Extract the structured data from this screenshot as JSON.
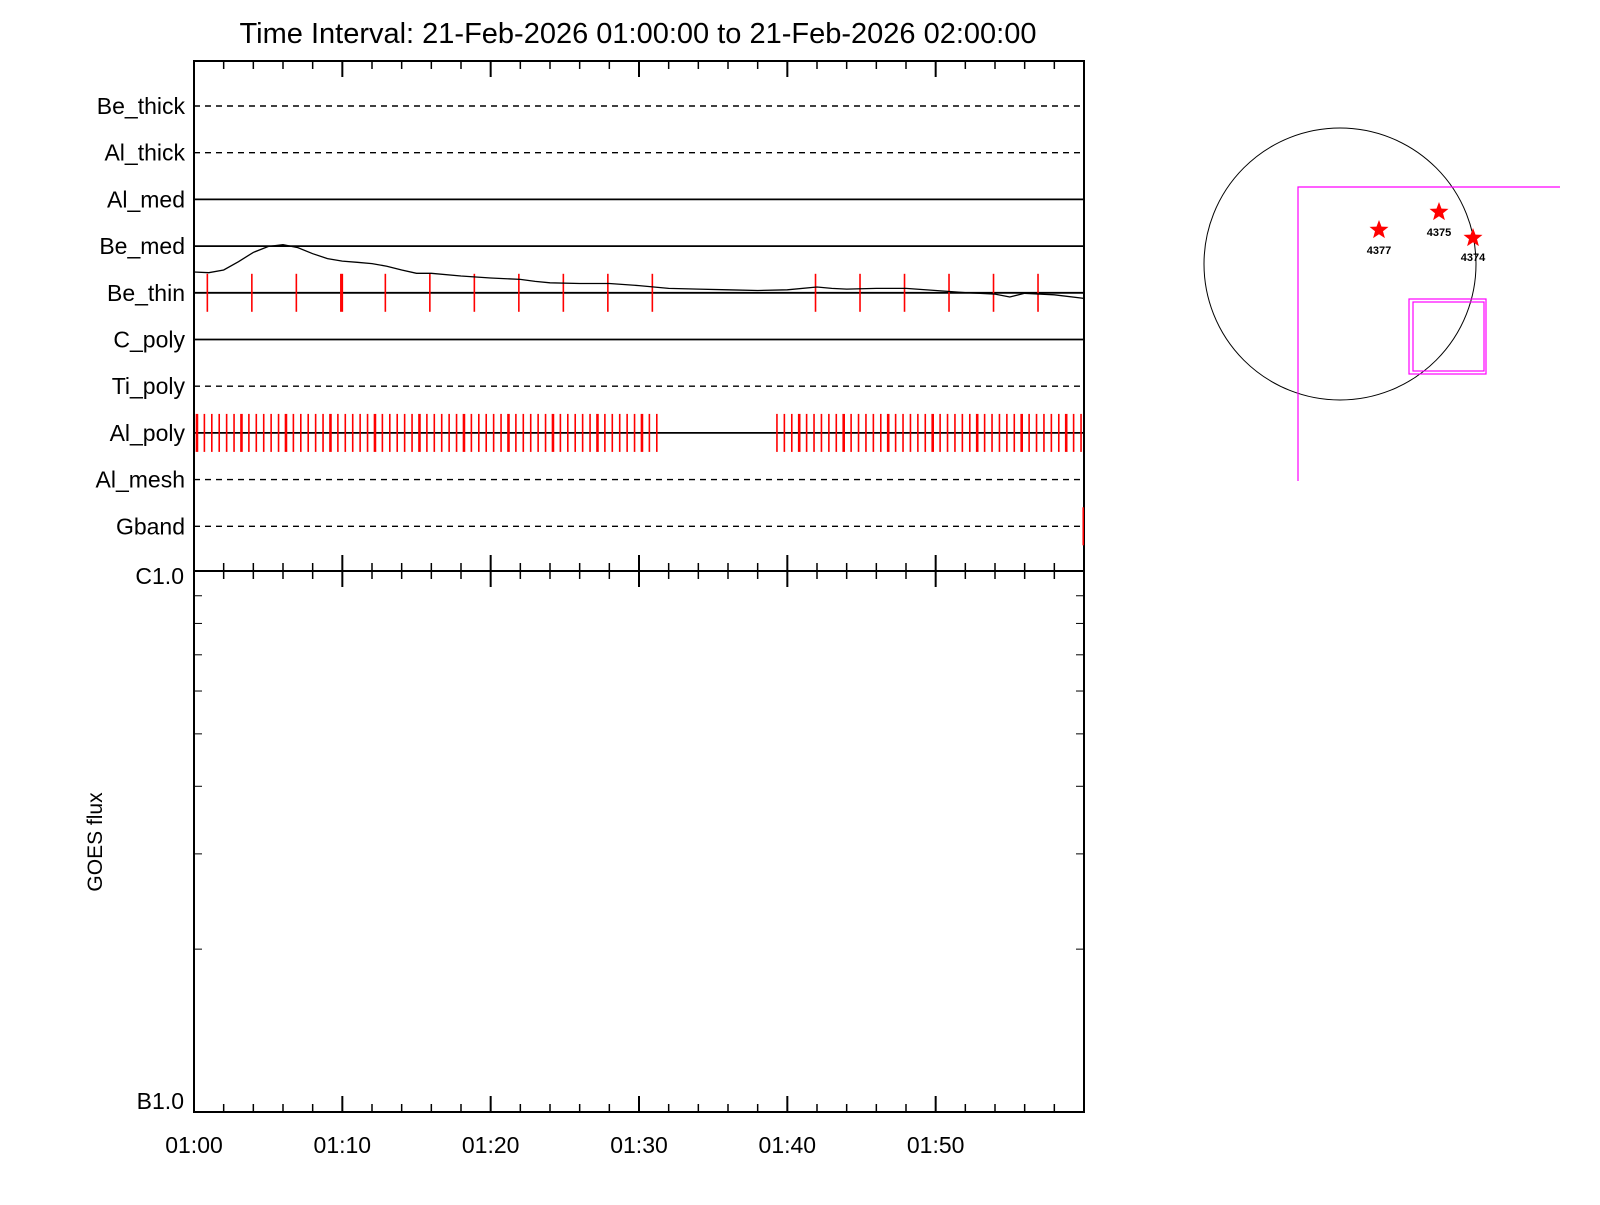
{
  "title": "Time Interval: 21-Feb-2026 01:00:00 to 21-Feb-2026 02:00:00",
  "colors": {
    "axes": "#000000",
    "event": "#ff0000",
    "fov": "#ff00ff",
    "disk": "#000000"
  },
  "chart_data": [
    {
      "type": "line",
      "title": "Time Interval: 21-Feb-2026 01:00:00 to 21-Feb-2026 02:00:00",
      "xlabel": "",
      "ylabel": "",
      "xlim_minutes": [
        0,
        60
      ],
      "xtick_labels": [
        "01:00",
        "01:10",
        "01:20",
        "01:30",
        "01:40",
        "01:50"
      ],
      "xtick_minutes": [
        0,
        10,
        20,
        30,
        40,
        50
      ],
      "filters": [
        {
          "name": "Be_thick",
          "style": "dashed",
          "events": []
        },
        {
          "name": "Al_thick",
          "style": "dashed",
          "events": []
        },
        {
          "name": "Al_med",
          "style": "solid",
          "events": []
        },
        {
          "name": "Be_med",
          "style": "solid",
          "events": []
        },
        {
          "name": "Be_thin",
          "style": "solid",
          "events": [
            0.9,
            3.9,
            6.9,
            9.9,
            10.0,
            12.9,
            15.9,
            18.9,
            21.9,
            24.9,
            27.9,
            30.9,
            41.9,
            44.9,
            47.9,
            50.9,
            53.9,
            56.9
          ]
        },
        {
          "name": "C_poly",
          "style": "solid",
          "events": []
        },
        {
          "name": "Ti_poly",
          "style": "dashed",
          "events": []
        },
        {
          "name": "Al_poly",
          "style": "solid",
          "events_ranges": [
            [
              0.2,
              31.2
            ],
            [
              39.3,
              59.8
            ]
          ],
          "event_spacing_minutes": 0.5
        },
        {
          "name": "Al_mesh",
          "style": "dashed",
          "events": []
        },
        {
          "name": "Gband",
          "style": "dashed",
          "events": [
            59.95
          ]
        }
      ]
    },
    {
      "type": "line",
      "title": "",
      "xlabel": "",
      "ylabel": "GOES flux",
      "y_scale": "log",
      "ylim": [
        "B1.0",
        "C1.0"
      ],
      "ytick_labels": [
        "B1.0",
        "C1.0"
      ],
      "xtick_labels": [
        "01:00",
        "01:10",
        "01:20",
        "01:30",
        "01:40",
        "01:50"
      ],
      "series": [
        {
          "x_minutes": [
            0,
            1,
            2,
            3,
            4,
            5,
            6,
            7,
            8,
            9,
            10,
            11,
            12,
            13,
            14,
            15,
            16,
            18,
            20,
            22,
            23,
            24,
            26,
            28,
            30,
            32,
            34,
            36,
            38,
            40,
            42,
            43,
            44,
            46,
            48,
            50,
            52,
            54,
            55,
            56,
            58,
            60
          ],
          "y_flux": [
            3.57e-06,
            3.56e-06,
            3.6e-06,
            3.73e-06,
            3.88e-06,
            3.98e-06,
            4.01e-06,
            3.96e-06,
            3.86e-06,
            3.78e-06,
            3.74e-06,
            3.72e-06,
            3.7e-06,
            3.66e-06,
            3.6e-06,
            3.55e-06,
            3.55e-06,
            3.51e-06,
            3.48e-06,
            3.46e-06,
            3.43e-06,
            3.41e-06,
            3.4e-06,
            3.4e-06,
            3.37e-06,
            3.33e-06,
            3.32e-06,
            3.31e-06,
            3.3e-06,
            3.31e-06,
            3.35e-06,
            3.33e-06,
            3.32e-06,
            3.33e-06,
            3.33e-06,
            3.3e-06,
            3.27e-06,
            3.25e-06,
            3.21e-06,
            3.26e-06,
            3.24e-06,
            3.19e-06
          ]
        }
      ]
    }
  ],
  "context_map": {
    "active_regions": [
      "4375",
      "4377",
      "4374"
    ]
  }
}
